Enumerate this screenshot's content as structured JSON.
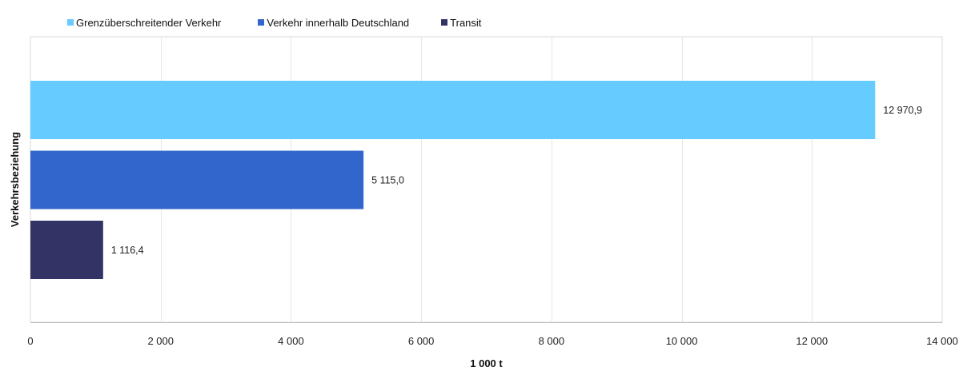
{
  "chart_data": {
    "type": "bar",
    "orientation": "horizontal",
    "series": [
      {
        "name": "Grenzüberschreitender Verkehr",
        "value": 12970.9,
        "label": "12 970,9",
        "color": "#66ccff"
      },
      {
        "name": "Verkehr innerhalb Deutschland",
        "value": 5115.0,
        "label": "5 115,0",
        "color": "#3366cc"
      },
      {
        "name": "Transit",
        "value": 1116.4,
        "label": "1 116,4",
        "color": "#333366"
      }
    ],
    "xlabel": "1 000 t",
    "ylabel": "Verkehrsbeziehung",
    "xlim": [
      0,
      14000
    ],
    "xticks": [
      0,
      2000,
      4000,
      6000,
      8000,
      10000,
      12000,
      14000
    ],
    "xtick_labels": [
      "0",
      "2 000",
      "4 000",
      "6 000",
      "8 000",
      "10 000",
      "12 000",
      "14 000"
    ],
    "grid": "vertical",
    "legend_position": "top-left"
  }
}
